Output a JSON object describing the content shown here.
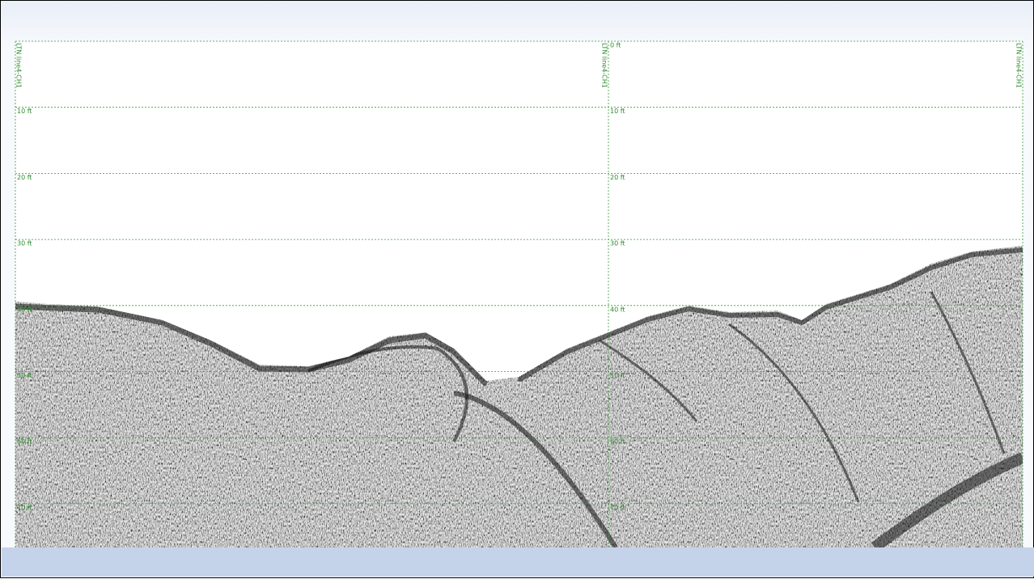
{
  "channel_label": "LTN line4-CH1",
  "depth_labels": [
    "0 ft",
    "10 ft",
    "20 ft",
    "30 ft",
    "40 ft",
    "50 ft",
    "60 ft",
    "70 ft"
  ]
}
